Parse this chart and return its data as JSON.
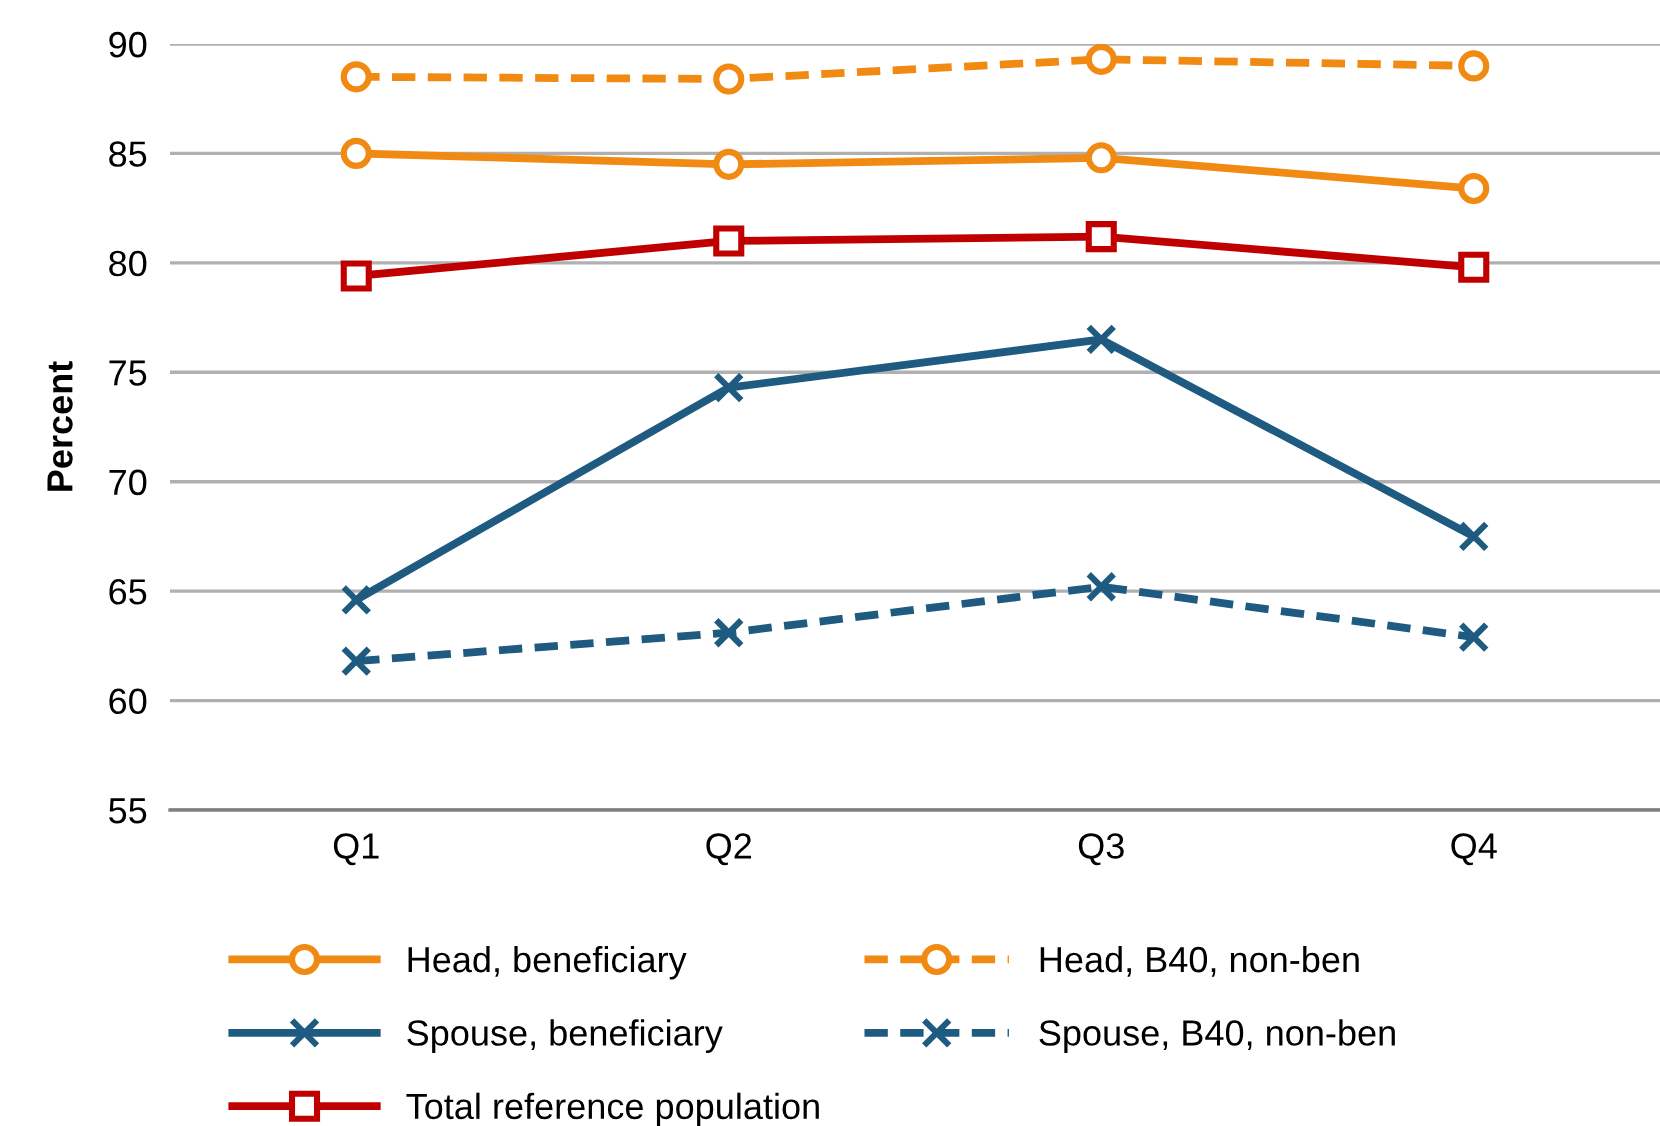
{
  "chart_data": {
    "type": "line",
    "ylabel": "Percent",
    "categories": [
      "Q1",
      "Q2",
      "Q3",
      "Q4"
    ],
    "series": [
      {
        "name": "Head, beneficiary",
        "color": "#f08a12",
        "values": [
          85.0,
          84.5,
          84.8,
          83.4
        ],
        "marker": "circle",
        "line_style": "solid"
      },
      {
        "name": "Head, B40, non-ben",
        "color": "#f08a12",
        "values": [
          88.5,
          88.4,
          89.3,
          89.0
        ],
        "marker": "circle",
        "line_style": "dashed"
      },
      {
        "name": "Spouse, beneficiary",
        "color": "#1f5b80",
        "values": [
          64.6,
          74.3,
          76.5,
          67.5
        ],
        "marker": "cross",
        "line_style": "solid"
      },
      {
        "name": "Spouse, B40, non-ben",
        "color": "#1f5b80",
        "values": [
          61.8,
          63.1,
          65.2,
          62.9
        ],
        "marker": "cross",
        "line_style": "dashed"
      },
      {
        "name": "Total reference population",
        "color": "#c00000",
        "values": [
          79.4,
          81.0,
          81.2,
          79.8
        ],
        "marker": "square",
        "line_style": "solid"
      }
    ],
    "ylim": [
      55,
      90
    ],
    "yticks": [
      55,
      60,
      65,
      70,
      75,
      80,
      85,
      90
    ],
    "grid": "y",
    "legend": "bottom"
  }
}
